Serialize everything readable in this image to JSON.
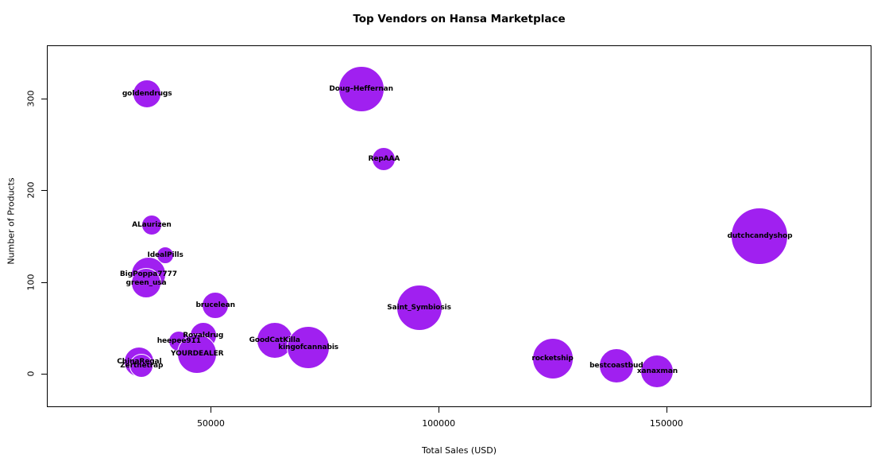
{
  "title": "Top Vendors on Hansa Marketplace",
  "chart_data": {
    "type": "scatter",
    "subtype": "bubble",
    "title": "Top Vendors on Hansa Marketplace",
    "xlabel": "Total Sales (USD)",
    "ylabel": "Number of Products",
    "xlim": [
      14000,
      195000
    ],
    "ylim": [
      -36,
      358
    ],
    "grid": false,
    "legend": "none",
    "bubble_color": "#A020F0",
    "x_ticks": [
      {
        "value": 50000,
        "label": "50000"
      },
      {
        "value": 100000,
        "label": "100000"
      },
      {
        "value": 150000,
        "label": "150000"
      }
    ],
    "y_ticks": [
      {
        "value": 0,
        "label": "0"
      },
      {
        "value": 100,
        "label": "100"
      },
      {
        "value": 200,
        "label": "200"
      },
      {
        "value": 300,
        "label": "300"
      }
    ],
    "points": [
      {
        "vendor": "goldendrugs",
        "total_sales_usd": 36000,
        "num_products": 305,
        "bubble_radius_px": 18
      },
      {
        "vendor": "Doug–Heffernan",
        "total_sales_usd": 83000,
        "num_products": 310,
        "bubble_radius_px": 29
      },
      {
        "vendor": "RepAAA",
        "total_sales_usd": 88000,
        "num_products": 234,
        "bubble_radius_px": 15
      },
      {
        "vendor": "ALaurizen",
        "total_sales_usd": 37000,
        "num_products": 162,
        "bubble_radius_px": 13
      },
      {
        "vendor": "IdealPills",
        "total_sales_usd": 40000,
        "num_products": 129,
        "bubble_radius_px": 11
      },
      {
        "vendor": "BigPoppa7777",
        "total_sales_usd": 36300,
        "num_products": 109,
        "bubble_radius_px": 22
      },
      {
        "vendor": "green_usa",
        "total_sales_usd": 35800,
        "num_products": 99,
        "bubble_radius_px": 19
      },
      {
        "vendor": "brucelean",
        "total_sales_usd": 51000,
        "num_products": 75,
        "bubble_radius_px": 17
      },
      {
        "vendor": "Royaldrug",
        "total_sales_usd": 48300,
        "num_products": 42,
        "bubble_radius_px": 17
      },
      {
        "vendor": "heepee911",
        "total_sales_usd": 43000,
        "num_products": 36,
        "bubble_radius_px": 13
      },
      {
        "vendor": "YOURDEALER",
        "total_sales_usd": 47000,
        "num_products": 22,
        "bubble_radius_px": 25
      },
      {
        "vendor": "GoodCatKilla",
        "total_sales_usd": 64000,
        "num_products": 37,
        "bubble_radius_px": 23
      },
      {
        "vendor": "kingofcannabis",
        "total_sales_usd": 71400,
        "num_products": 29,
        "bubble_radius_px": 27
      },
      {
        "vendor": "Saint_Symbiosis",
        "total_sales_usd": 95700,
        "num_products": 72,
        "bubble_radius_px": 29
      },
      {
        "vendor": "ChinaRegal",
        "total_sales_usd": 34300,
        "num_products": 13,
        "bubble_radius_px": 19
      },
      {
        "vendor": "Zerthetrap",
        "total_sales_usd": 34800,
        "num_products": 9,
        "bubble_radius_px": 15
      },
      {
        "vendor": "rocketship",
        "total_sales_usd": 125000,
        "num_products": 17,
        "bubble_radius_px": 26
      },
      {
        "vendor": "bestcoastbud",
        "total_sales_usd": 139000,
        "num_products": 9,
        "bubble_radius_px": 22
      },
      {
        "vendor": "xanaxman",
        "total_sales_usd": 148000,
        "num_products": 3,
        "bubble_radius_px": 21
      },
      {
        "vendor": "dutchcandyshop",
        "total_sales_usd": 170500,
        "num_products": 150,
        "bubble_radius_px": 36
      }
    ]
  }
}
